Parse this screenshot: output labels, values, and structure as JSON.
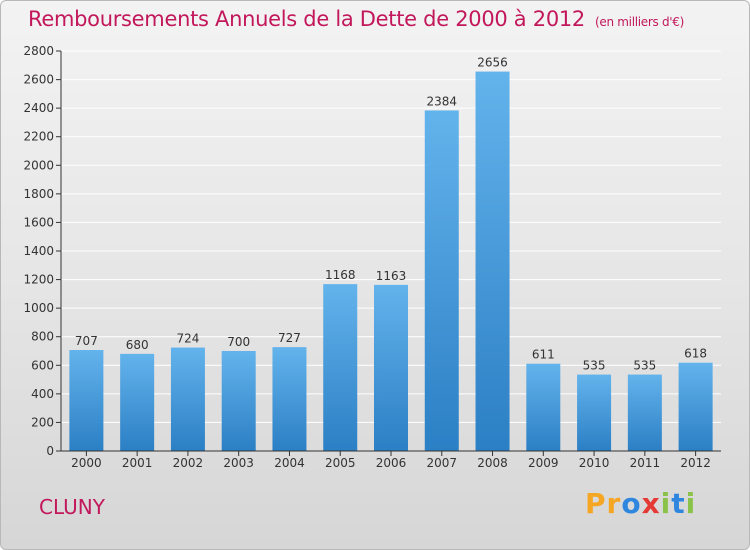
{
  "header": {
    "title": "Remboursements Annuels de la Dette de 2000 à 2012",
    "subtitle": "(en milliers d'€)"
  },
  "footer": {
    "city": "CLUNY",
    "brand": "Proxiti",
    "brand_letters": [
      {
        "char": "P",
        "color": "#f5a623"
      },
      {
        "char": "r",
        "color": "#f5a623"
      },
      {
        "char": "o",
        "color": "#2e86de"
      },
      {
        "char": "x",
        "color": "#e53935"
      },
      {
        "char": "i",
        "color": "#8bc34a"
      },
      {
        "char": "t",
        "color": "#2e86de"
      },
      {
        "char": "i",
        "color": "#8bc34a"
      }
    ]
  },
  "colors": {
    "title": "#c2185b",
    "bar_top": "#63b3ec",
    "bar_bottom": "#2b7fc4",
    "axis": "#333333",
    "grid": "#ffffff"
  },
  "chart_data": {
    "type": "bar",
    "categories": [
      "2000",
      "2001",
      "2002",
      "2003",
      "2004",
      "2005",
      "2006",
      "2007",
      "2008",
      "2009",
      "2010",
      "2011",
      "2012"
    ],
    "values": [
      707,
      680,
      724,
      700,
      727,
      1168,
      1163,
      2384,
      2656,
      611,
      535,
      535,
      618
    ],
    "title": "Remboursements Annuels de la Dette de 2000 à 2012",
    "subtitle": "(en milliers d'€)",
    "xlabel": "",
    "ylabel": "",
    "ylim": [
      0,
      2800
    ],
    "yticks": [
      0,
      200,
      400,
      600,
      800,
      1000,
      1200,
      1400,
      1600,
      1800,
      2000,
      2200,
      2400,
      2600,
      2800
    ],
    "grid": true,
    "data_labels": true
  }
}
